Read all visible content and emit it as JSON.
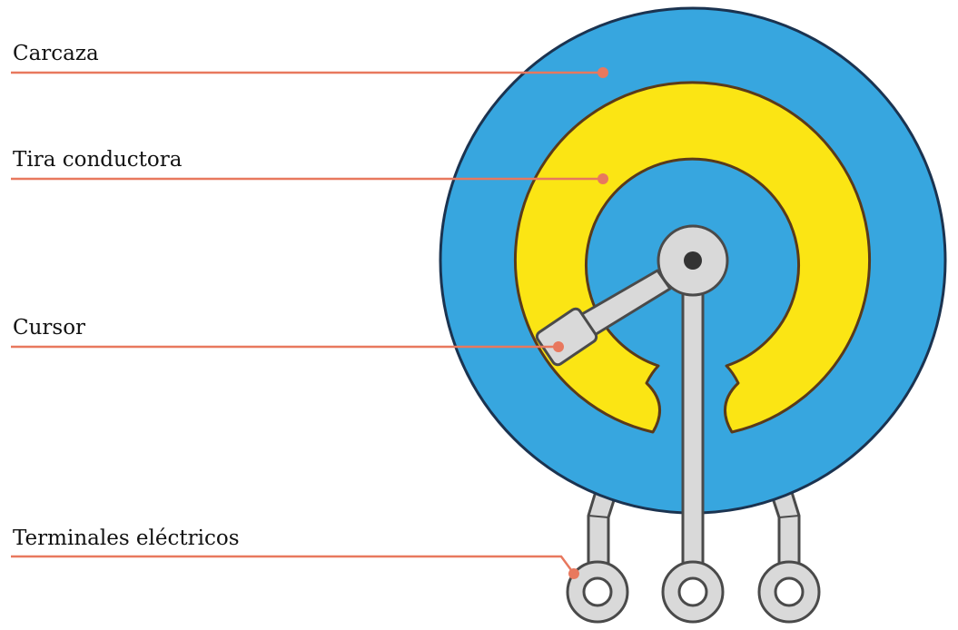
{
  "labels": {
    "housing": "Carcaza",
    "conductive_strip": "Tira conductora",
    "wiper": "Cursor",
    "terminals": "Terminales eléctricos"
  },
  "colors": {
    "housing_fill": "#37A6DF",
    "housing_stroke": "#1B3350",
    "strip_fill": "#FBE514",
    "strip_stroke": "#5A3A1A",
    "metal_fill": "#D9D9D9",
    "metal_stroke": "#4A4A4A",
    "leader_line": "#E8785E",
    "pivot_dot": "#333333"
  }
}
